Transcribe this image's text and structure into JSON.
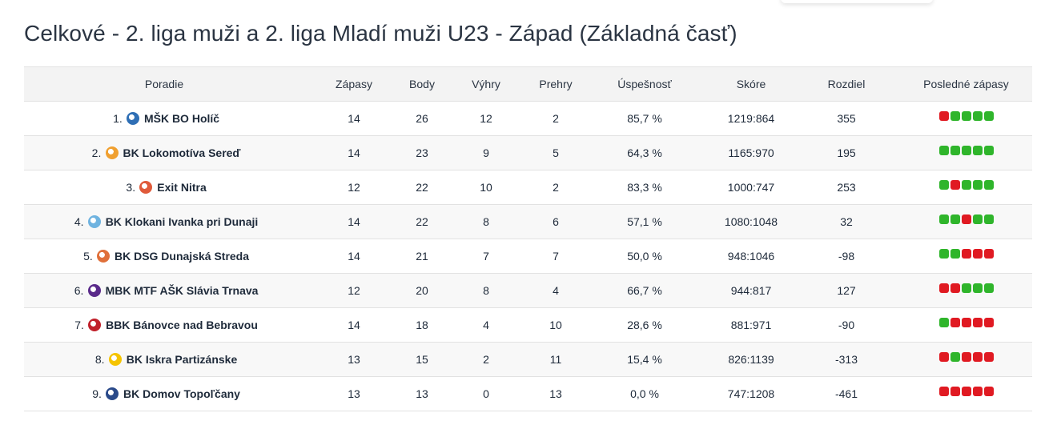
{
  "page": {
    "title": "Celkové - 2. liga muži a 2. liga Mladí muži U23 - Západ (Základná časť)"
  },
  "table": {
    "headers": {
      "rank": "Poradie",
      "games": "Zápasy",
      "points": "Body",
      "wins": "Výhry",
      "losses": "Prehry",
      "success": "Úspešnosť",
      "score": "Skóre",
      "diff": "Rozdiel",
      "last": "Posledné zápasy"
    },
    "rows": [
      {
        "rank": "1.",
        "team": "MŠK BO Holíč",
        "logo": "team-logo-holic",
        "logo_color": "#2f6fb5",
        "games": "14",
        "points": "26",
        "wins": "12",
        "losses": "2",
        "success": "85,7 %",
        "score": "1219:864",
        "diff": "355",
        "last": [
          "L",
          "W",
          "W",
          "W",
          "W"
        ]
      },
      {
        "rank": "2.",
        "team": "BK Lokomotíva Sereď",
        "logo": "team-logo-sered",
        "logo_color": "#f0a030",
        "games": "14",
        "points": "23",
        "wins": "9",
        "losses": "5",
        "success": "64,3 %",
        "score": "1165:970",
        "diff": "195",
        "last": [
          "W",
          "W",
          "W",
          "W",
          "W"
        ]
      },
      {
        "rank": "3.",
        "team": "Exit Nitra",
        "logo": "team-logo-nitra",
        "logo_color": "#e05a3a",
        "games": "12",
        "points": "22",
        "wins": "10",
        "losses": "2",
        "success": "83,3 %",
        "score": "1000:747",
        "diff": "253",
        "last": [
          "W",
          "L",
          "W",
          "W",
          "W"
        ]
      },
      {
        "rank": "4.",
        "team": "BK Klokani Ivanka pri Dunaji",
        "logo": "team-logo-ivanka",
        "logo_color": "#6fb3e0",
        "games": "14",
        "points": "22",
        "wins": "8",
        "losses": "6",
        "success": "57,1 %",
        "score": "1080:1048",
        "diff": "32",
        "last": [
          "W",
          "W",
          "L",
          "W",
          "W"
        ]
      },
      {
        "rank": "5.",
        "team": "BK DSG Dunajská Streda",
        "logo": "team-logo-dunajska",
        "logo_color": "#e0703a",
        "games": "14",
        "points": "21",
        "wins": "7",
        "losses": "7",
        "success": "50,0 %",
        "score": "948:1046",
        "diff": "-98",
        "last": [
          "W",
          "W",
          "L",
          "L",
          "L"
        ]
      },
      {
        "rank": "6.",
        "team": "MBK MTF AŠK Slávia Trnava",
        "logo": "team-logo-trnava",
        "logo_color": "#5a2a8a",
        "games": "12",
        "points": "20",
        "wins": "8",
        "losses": "4",
        "success": "66,7 %",
        "score": "944:817",
        "diff": "127",
        "last": [
          "L",
          "L",
          "W",
          "W",
          "W"
        ]
      },
      {
        "rank": "7.",
        "team": "BBK Bánovce nad Bebravou",
        "logo": "team-logo-banovce",
        "logo_color": "#c0202a",
        "games": "14",
        "points": "18",
        "wins": "4",
        "losses": "10",
        "success": "28,6 %",
        "score": "881:971",
        "diff": "-90",
        "last": [
          "W",
          "L",
          "L",
          "L",
          "L"
        ]
      },
      {
        "rank": "8.",
        "team": "BK Iskra Partizánske",
        "logo": "team-logo-partizanske",
        "logo_color": "#f5c400",
        "games": "13",
        "points": "15",
        "wins": "2",
        "losses": "11",
        "success": "15,4 %",
        "score": "826:1139",
        "diff": "-313",
        "last": [
          "L",
          "W",
          "L",
          "L",
          "L"
        ]
      },
      {
        "rank": "9.",
        "team": "BK Domov Topoľčany",
        "logo": "team-logo-topolcany",
        "logo_color": "#2a4a8a",
        "games": "13",
        "points": "13",
        "wins": "0",
        "losses": "13",
        "success": "0,0 %",
        "score": "747:1208",
        "diff": "-461",
        "last": [
          "L",
          "L",
          "L",
          "L",
          "L"
        ]
      }
    ]
  }
}
